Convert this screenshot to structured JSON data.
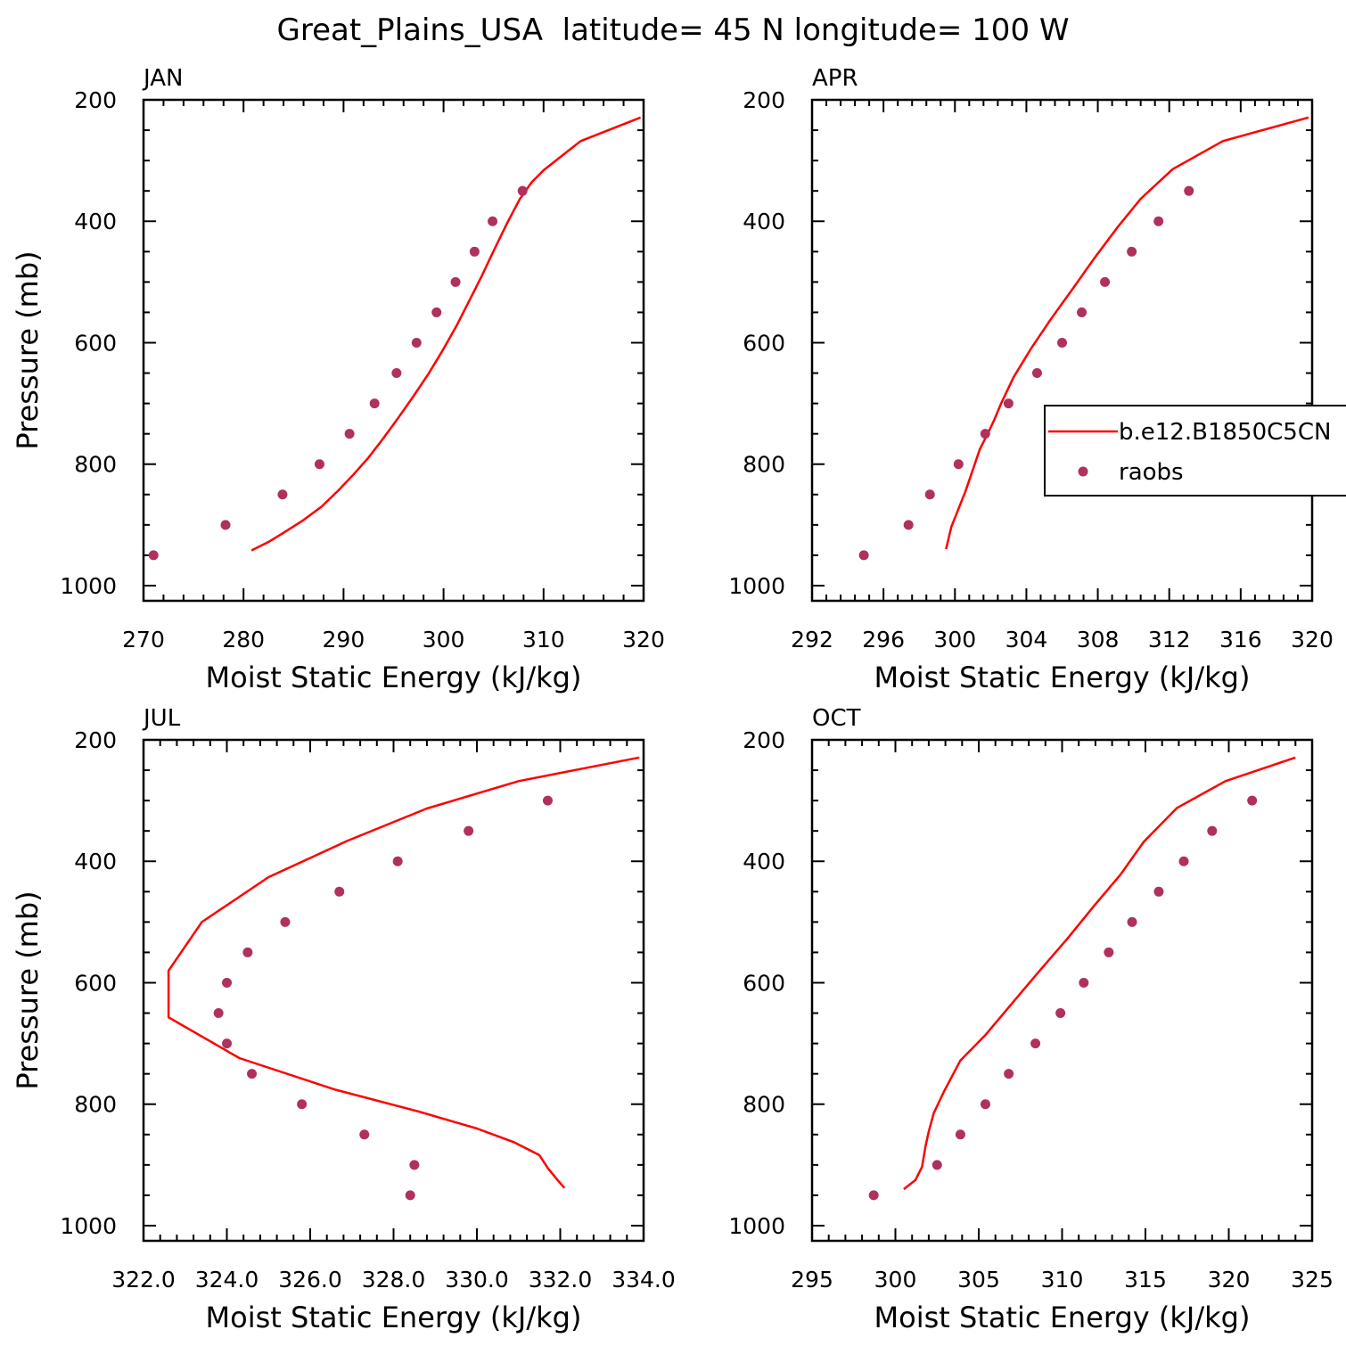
{
  "figure": {
    "title": "Great_Plains_USA  latitude= 45 N longitude= 100 W"
  },
  "colors": {
    "model_line": "#ff0000",
    "obs_marker": "#b03060",
    "axis": "#000000"
  },
  "legend": {
    "panel": "APR",
    "entries": [
      {
        "label": "b.e12.B1850C5CN",
        "style": "line"
      },
      {
        "label": "raobs",
        "style": "marker"
      }
    ]
  },
  "chart_data": [
    {
      "type": "line",
      "panel_label": "JAN",
      "xlabel": "Moist Static Energy (kJ/kg)",
      "ylabel": "Pressure (mb)",
      "xlim": [
        270,
        320
      ],
      "ylim": [
        1025,
        200
      ],
      "xticks": [
        270,
        280,
        290,
        300,
        310,
        320
      ],
      "xtick_labels": [
        "270",
        "280",
        "290",
        "300",
        "310",
        "320"
      ],
      "yticks": [
        200,
        400,
        600,
        800,
        1000
      ],
      "ytick_labels": [
        "200",
        "400",
        "600",
        "800",
        "1000"
      ],
      "series": [
        {
          "name": "b.e12.B1850C5CN",
          "kind": "line",
          "x": [
            280.8,
            282.5,
            284.0,
            286.0,
            287.8,
            289.5,
            291.0,
            292.5,
            294.0,
            295.5,
            297.0,
            298.5,
            299.9,
            301.3,
            302.5,
            303.8,
            305.0,
            306.3,
            307.6,
            308.8,
            310.0,
            313.7,
            319.7
          ],
          "y": [
            942,
            928,
            913,
            892,
            870,
            843,
            817,
            789,
            757,
            723,
            688,
            651,
            613,
            572,
            533,
            491,
            449,
            405,
            364,
            336,
            316,
            268,
            229
          ]
        },
        {
          "name": "raobs",
          "kind": "scatter",
          "x": [
            271.0,
            278.2,
            283.9,
            287.6,
            290.6,
            293.1,
            295.3,
            297.3,
            299.3,
            301.2,
            303.1,
            304.9,
            307.9
          ],
          "y": [
            950,
            900,
            850,
            800,
            750,
            700,
            650,
            600,
            550,
            500,
            450,
            400,
            350
          ]
        }
      ]
    },
    {
      "type": "line",
      "panel_label": "APR",
      "xlabel": "Moist Static Energy (kJ/kg)",
      "ylabel": "",
      "xlim": [
        292,
        320
      ],
      "ylim": [
        1025,
        200
      ],
      "xticks": [
        292,
        296,
        300,
        304,
        308,
        312,
        316,
        320
      ],
      "xtick_labels": [
        "292",
        "296",
        "300",
        "304",
        "308",
        "312",
        "316",
        "320"
      ],
      "yticks": [
        200,
        400,
        600,
        800,
        1000
      ],
      "ytick_labels": [
        "200",
        "400",
        "600",
        "800",
        "1000"
      ],
      "series": [
        {
          "name": "b.e12.B1850C5CN",
          "kind": "line",
          "x": [
            299.5,
            299.8,
            300.6,
            301.4,
            301.8,
            302.2,
            302.6,
            303.3,
            304.3,
            305.4,
            306.6,
            307.8,
            309.1,
            310.4,
            312.2,
            315.0,
            319.8
          ],
          "y": [
            940,
            903,
            844,
            775,
            752,
            727,
            699,
            656,
            608,
            560,
            511,
            461,
            410,
            363,
            314,
            268,
            229
          ]
        },
        {
          "name": "raobs",
          "kind": "scatter",
          "x": [
            294.9,
            297.4,
            298.6,
            300.2,
            301.7,
            303.0,
            304.6,
            306.0,
            307.1,
            308.4,
            309.9,
            311.4,
            313.1
          ],
          "y": [
            950,
            900,
            850,
            800,
            750,
            700,
            650,
            600,
            550,
            500,
            450,
            400,
            350
          ]
        }
      ]
    },
    {
      "type": "line",
      "panel_label": "JUL",
      "xlabel": "Moist Static Energy (kJ/kg)",
      "ylabel": "Pressure (mb)",
      "xlim": [
        322.0,
        334.0
      ],
      "ylim": [
        1025,
        200
      ],
      "xticks": [
        322.0,
        324.0,
        326.0,
        328.0,
        330.0,
        332.0,
        334.0
      ],
      "xtick_labels": [
        "322.0",
        "324.0",
        "326.0",
        "328.0",
        "330.0",
        "332.0",
        "334.0"
      ],
      "yticks": [
        200,
        400,
        600,
        800,
        1000
      ],
      "ytick_labels": [
        "200",
        "400",
        "600",
        "800",
        "1000"
      ],
      "series": [
        {
          "name": "b.e12.B1850C5CN",
          "kind": "line",
          "x": [
            332.1,
            331.9,
            331.7,
            331.5,
            330.9,
            330.0,
            328.6,
            326.6,
            324.3,
            322.6,
            322.6,
            323.4,
            325.0,
            326.9,
            328.8,
            331.0,
            333.9
          ],
          "y": [
            938,
            922,
            905,
            884,
            863,
            840,
            812,
            776,
            724,
            657,
            580,
            500,
            426,
            366,
            313,
            268,
            229
          ]
        },
        {
          "name": "raobs",
          "kind": "scatter",
          "x": [
            328.4,
            328.5,
            327.3,
            325.8,
            324.6,
            324.0,
            323.8,
            324.0,
            324.5,
            325.4,
            326.7,
            328.1,
            329.8,
            331.7
          ],
          "y": [
            950,
            900,
            850,
            800,
            750,
            700,
            650,
            600,
            550,
            500,
            450,
            400,
            350,
            300
          ]
        }
      ]
    },
    {
      "type": "line",
      "panel_label": "OCT",
      "xlabel": "Moist Static Energy (kJ/kg)",
      "ylabel": "",
      "xlim": [
        295,
        325
      ],
      "ylim": [
        1025,
        200
      ],
      "xticks": [
        295,
        300,
        305,
        310,
        315,
        320,
        325
      ],
      "xtick_labels": [
        "295",
        "300",
        "305",
        "310",
        "315",
        "320",
        "325"
      ],
      "yticks": [
        200,
        400,
        600,
        800,
        1000
      ],
      "ytick_labels": [
        "200",
        "400",
        "600",
        "800",
        "1000"
      ],
      "series": [
        {
          "name": "b.e12.B1850C5CN",
          "kind": "line",
          "x": [
            300.5,
            301.2,
            301.6,
            301.8,
            302.0,
            302.3,
            302.9,
            303.9,
            305.4,
            307.0,
            308.6,
            310.3,
            311.9,
            313.5,
            314.9,
            316.9,
            319.8,
            324.0
          ],
          "y": [
            940,
            925,
            903,
            870,
            845,
            815,
            780,
            728,
            686,
            634,
            582,
            528,
            474,
            422,
            368,
            312,
            268,
            229
          ]
        },
        {
          "name": "raobs",
          "kind": "scatter",
          "x": [
            298.7,
            302.5,
            303.9,
            305.4,
            306.8,
            308.4,
            309.9,
            311.3,
            312.8,
            314.2,
            315.8,
            317.3,
            319.0,
            321.4
          ],
          "y": [
            950,
            900,
            850,
            800,
            750,
            700,
            650,
            600,
            550,
            500,
            450,
            400,
            350,
            300
          ]
        }
      ]
    }
  ]
}
